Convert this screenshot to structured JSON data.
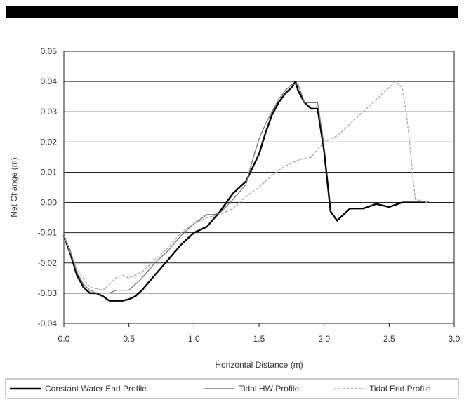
{
  "chart_data": {
    "type": "line",
    "title": "",
    "xlabel": "Horizontal Distance (m)",
    "ylabel": "Net Change (m)",
    "xlim": [
      0.0,
      3.0
    ],
    "ylim": [
      -0.04,
      0.05
    ],
    "x_ticks": [
      "0.0",
      "0.5",
      "1.0",
      "1.5",
      "2.0",
      "2.5",
      "3.0"
    ],
    "y_ticks": [
      "0.05",
      "0.04",
      "0.03",
      "0.02",
      "0.01",
      "0.00",
      "-0.01",
      "-0.02",
      "-0.03",
      "-0.04"
    ],
    "grid": true,
    "legend_position": "bottom",
    "series": [
      {
        "name": "Constant Water End Profile",
        "color": "#000000",
        "style": "solid",
        "x": [
          0.0,
          0.05,
          0.1,
          0.15,
          0.2,
          0.25,
          0.3,
          0.35,
          0.4,
          0.45,
          0.5,
          0.55,
          0.6,
          0.7,
          0.8,
          0.9,
          1.0,
          1.1,
          1.2,
          1.3,
          1.4,
          1.5,
          1.55,
          1.6,
          1.65,
          1.7,
          1.75,
          1.78,
          1.8,
          1.85,
          1.9,
          1.95,
          2.0,
          2.05,
          2.1,
          2.15,
          2.2,
          2.3,
          2.4,
          2.5,
          2.6,
          2.7,
          2.8
        ],
        "y": [
          -0.011,
          -0.017,
          -0.024,
          -0.028,
          -0.03,
          -0.03,
          -0.031,
          -0.0325,
          -0.0325,
          -0.0325,
          -0.032,
          -0.031,
          -0.029,
          -0.024,
          -0.019,
          -0.014,
          -0.01,
          -0.008,
          -0.003,
          0.003,
          0.007,
          0.016,
          0.023,
          0.029,
          0.033,
          0.036,
          0.038,
          0.04,
          0.037,
          0.033,
          0.031,
          0.031,
          0.017,
          -0.003,
          -0.006,
          -0.004,
          -0.002,
          -0.002,
          -0.0005,
          -0.0015,
          0.0,
          0.0,
          0.0
        ]
      },
      {
        "name": "Tidal HW Profile",
        "color": "#777777",
        "style": "solid",
        "x": [
          0.0,
          0.05,
          0.1,
          0.15,
          0.2,
          0.25,
          0.3,
          0.35,
          0.4,
          0.45,
          0.5,
          0.6,
          0.7,
          0.8,
          0.9,
          1.0,
          1.1,
          1.15,
          1.2,
          1.3,
          1.4,
          1.45,
          1.5,
          1.55,
          1.6,
          1.65,
          1.7,
          1.75,
          1.8,
          1.85,
          1.9,
          1.95,
          2.0
        ],
        "y": [
          -0.011,
          -0.016,
          -0.023,
          -0.027,
          -0.029,
          -0.03,
          -0.03,
          -0.03,
          -0.029,
          -0.029,
          -0.029,
          -0.025,
          -0.02,
          -0.016,
          -0.011,
          -0.007,
          -0.004,
          -0.004,
          -0.0035,
          0.001,
          0.006,
          0.014,
          0.021,
          0.026,
          0.03,
          0.034,
          0.037,
          0.039,
          0.039,
          0.033,
          0.033,
          0.033,
          0.019
        ]
      },
      {
        "name": "Tidal End Profile",
        "color": "#aaaaaa",
        "style": "dashed",
        "x": [
          0.0,
          0.1,
          0.2,
          0.3,
          0.35,
          0.4,
          0.45,
          0.5,
          0.6,
          0.7,
          0.8,
          0.9,
          1.0,
          1.1,
          1.2,
          1.3,
          1.4,
          1.5,
          1.6,
          1.7,
          1.8,
          1.9,
          2.0,
          2.1,
          2.2,
          2.3,
          2.4,
          2.5,
          2.55,
          2.6,
          2.63,
          2.65,
          2.68,
          2.7,
          2.8
        ],
        "y": [
          -0.011,
          -0.022,
          -0.028,
          -0.029,
          -0.027,
          -0.025,
          -0.024,
          -0.025,
          -0.023,
          -0.019,
          -0.015,
          -0.01,
          -0.007,
          -0.005,
          -0.004,
          -0.002,
          0.002,
          0.005,
          0.009,
          0.012,
          0.014,
          0.015,
          0.02,
          0.022,
          0.026,
          0.03,
          0.034,
          0.038,
          0.04,
          0.038,
          0.03,
          0.023,
          0.01,
          0.001,
          0.0
        ]
      }
    ]
  }
}
